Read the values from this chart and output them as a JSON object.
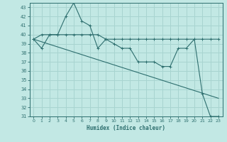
{
  "xlabel": "Humidex (Indice chaleur)",
  "xlim": [
    -0.5,
    23.5
  ],
  "ylim": [
    31,
    43.5
  ],
  "yticks": [
    31,
    32,
    33,
    34,
    35,
    36,
    37,
    38,
    39,
    40,
    41,
    42,
    43
  ],
  "xticks": [
    0,
    1,
    2,
    3,
    4,
    5,
    6,
    7,
    8,
    9,
    10,
    11,
    12,
    13,
    14,
    15,
    16,
    17,
    18,
    19,
    20,
    21,
    22,
    23
  ],
  "bg_color": "#c2e8e4",
  "grid_color": "#a8d4d0",
  "line_color": "#2d6e6e",
  "series1_x": [
    0,
    1,
    2,
    3,
    4,
    5,
    6,
    7,
    8,
    9,
    10,
    11,
    12,
    13,
    14,
    15,
    16,
    17,
    18,
    19,
    20,
    21,
    22,
    23
  ],
  "series1_y": [
    39.5,
    38.5,
    40.0,
    40.0,
    42.0,
    43.5,
    41.5,
    41.0,
    38.5,
    39.5,
    39.0,
    38.5,
    38.5,
    37.0,
    37.0,
    37.0,
    36.5,
    36.5,
    38.5,
    38.5,
    39.5,
    33.5,
    31.0,
    31.0
  ],
  "series2_x": [
    0,
    1,
    2,
    3,
    4,
    5,
    6,
    7,
    8,
    9,
    10,
    11,
    12,
    13,
    14,
    15,
    16,
    17,
    18,
    19,
    20,
    21,
    22,
    23
  ],
  "series2_y": [
    39.5,
    40.0,
    40.0,
    40.0,
    40.0,
    40.0,
    40.0,
    40.0,
    40.0,
    39.5,
    39.5,
    39.5,
    39.5,
    39.5,
    39.5,
    39.5,
    39.5,
    39.5,
    39.5,
    39.5,
    39.5,
    39.5,
    39.5,
    39.5
  ],
  "series3_x": [
    0,
    23
  ],
  "series3_y": [
    39.5,
    33.0
  ]
}
